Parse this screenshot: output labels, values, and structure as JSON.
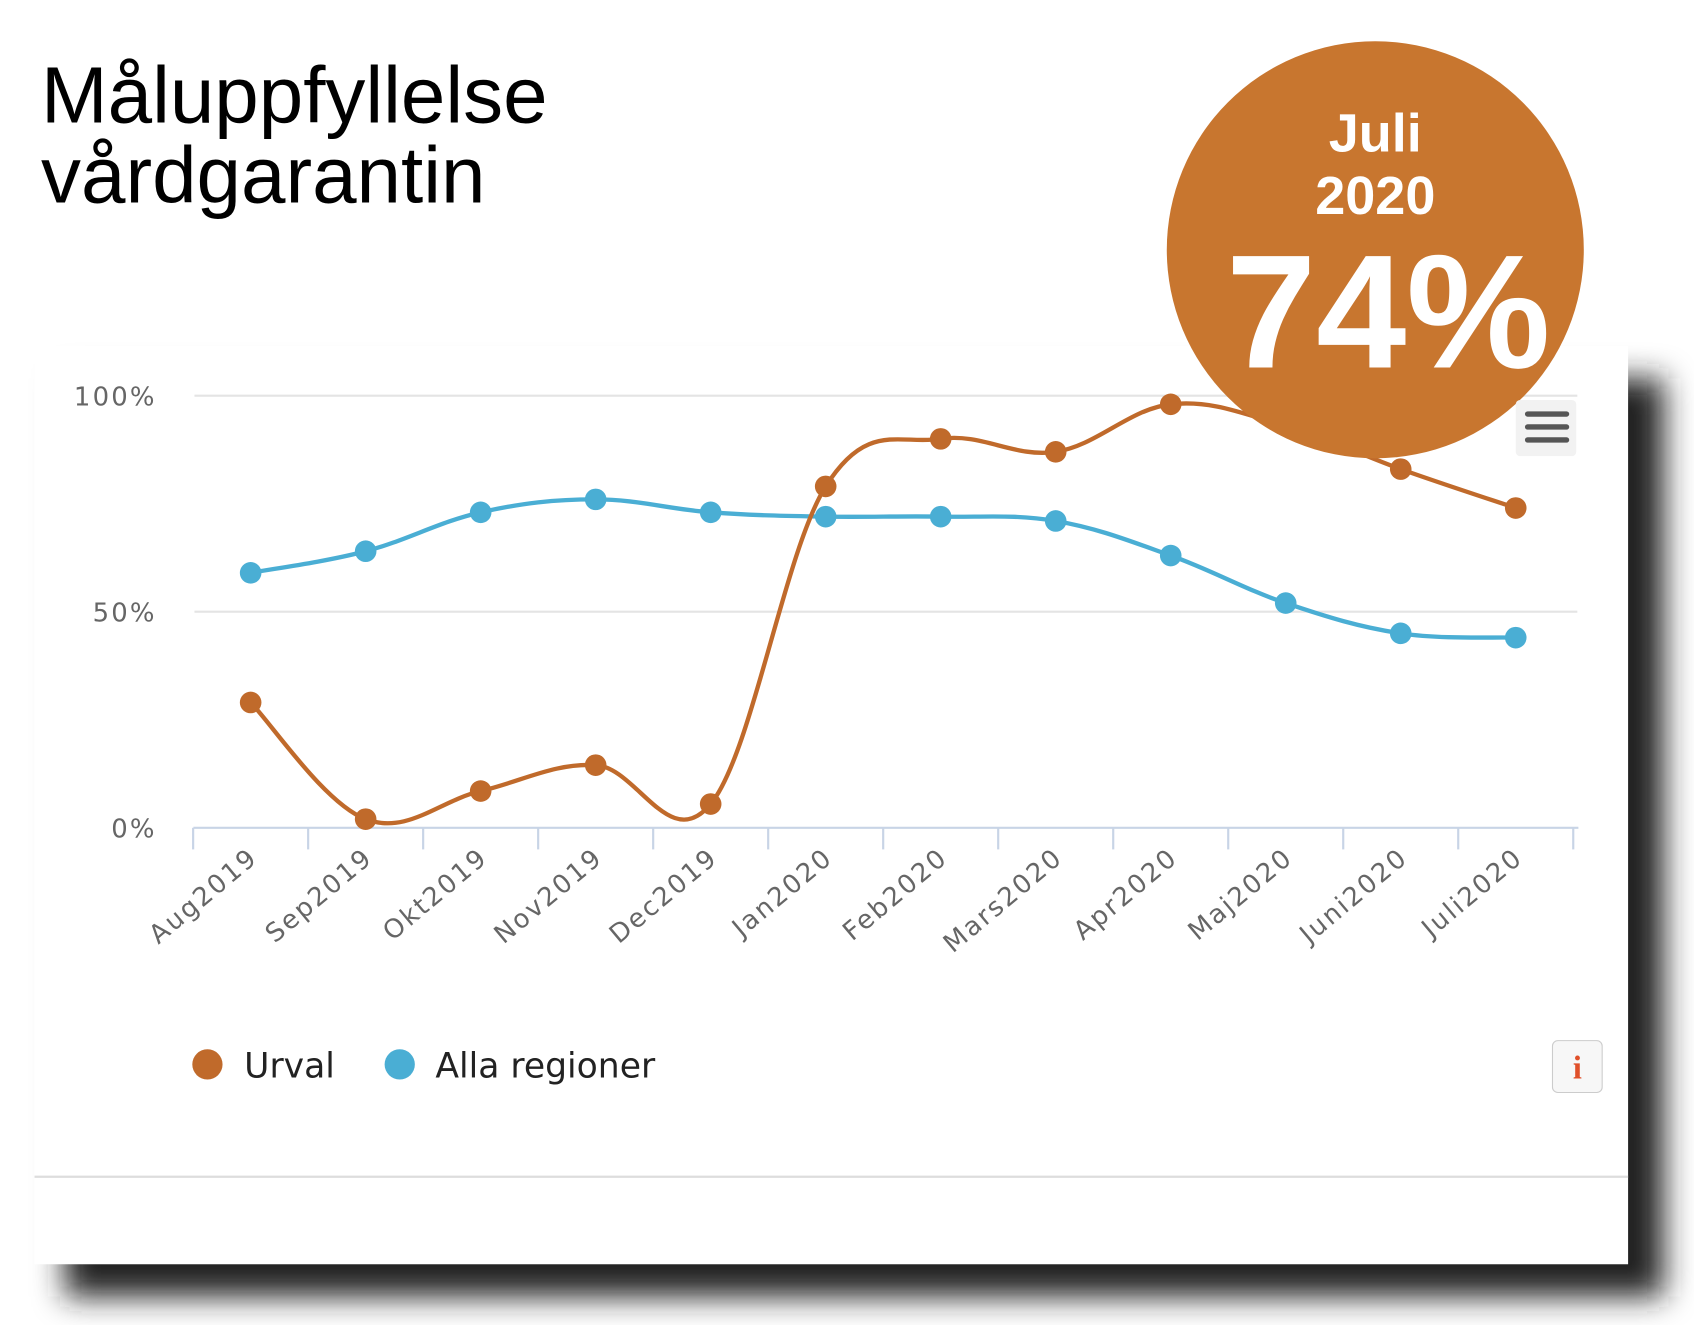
{
  "title_lines": [
    "Måluppfyllelse",
    "vårdgarantin"
  ],
  "badge": {
    "month": "Juli",
    "year": "2020",
    "value": "74%",
    "color": "#c8762f"
  },
  "icons": {
    "menu": "hamburger-menu-icon",
    "info": "info-icon",
    "info_label": "i"
  },
  "chart_data": {
    "type": "line",
    "categories": [
      "Aug2019",
      "Sep2019",
      "Okt2019",
      "Nov2019",
      "Dec2019",
      "Jan2020",
      "Feb2020",
      "Mars2020",
      "Apr2020",
      "Maj2020",
      "Juni2020",
      "Juli2020"
    ],
    "series": [
      {
        "name": "Urval",
        "color": "#c06a2b",
        "values": [
          29,
          2,
          8.5,
          14.5,
          5.5,
          79,
          90,
          87,
          98,
          93,
          83,
          74
        ]
      },
      {
        "name": "Alla regioner",
        "color": "#4aaed4",
        "values": [
          59,
          64,
          73,
          76,
          73,
          72,
          72,
          71,
          63,
          52,
          45,
          44
        ]
      }
    ],
    "yticks": [
      "0%",
      "50%",
      "100%"
    ],
    "ytick_values": [
      0,
      50,
      100
    ],
    "ylim": [
      0,
      100
    ],
    "grid": true,
    "legend": "bottom-left"
  }
}
